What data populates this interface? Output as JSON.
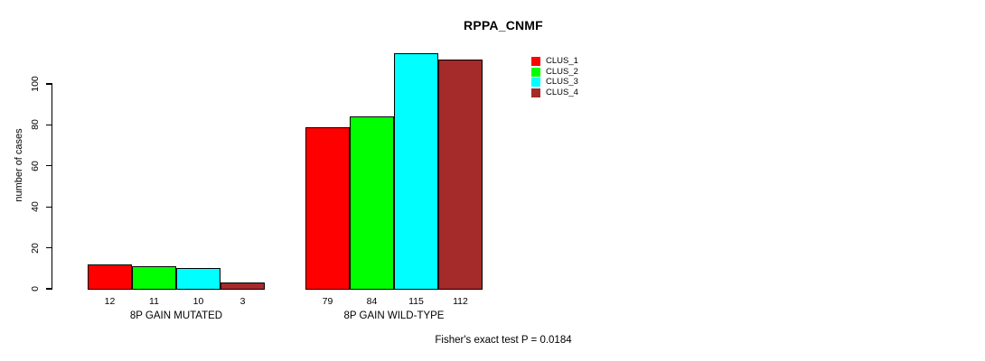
{
  "chart_data": {
    "type": "bar",
    "title": "RPPA_CNMF",
    "ylabel": "number of cases",
    "xlabel": "",
    "ylim": [
      0,
      115
    ],
    "yticks": [
      0,
      20,
      40,
      60,
      80,
      100
    ],
    "grid": false,
    "legend_position": "top-right-inside",
    "categories": [
      "8P GAIN MUTATED",
      "8P GAIN WILD-TYPE"
    ],
    "series": [
      {
        "name": "CLUS_1",
        "color": "#ff0000",
        "values": [
          12,
          79
        ]
      },
      {
        "name": "CLUS_2",
        "color": "#00ff00",
        "values": [
          11,
          84
        ]
      },
      {
        "name": "CLUS_3",
        "color": "#00ffff",
        "values": [
          10,
          115
        ]
      },
      {
        "name": "CLUS_4",
        "color": "#a52a2a",
        "values": [
          3,
          112
        ]
      }
    ],
    "bar_value_labels": true,
    "annotation": "Fisher's exact test P = 0.0184"
  }
}
